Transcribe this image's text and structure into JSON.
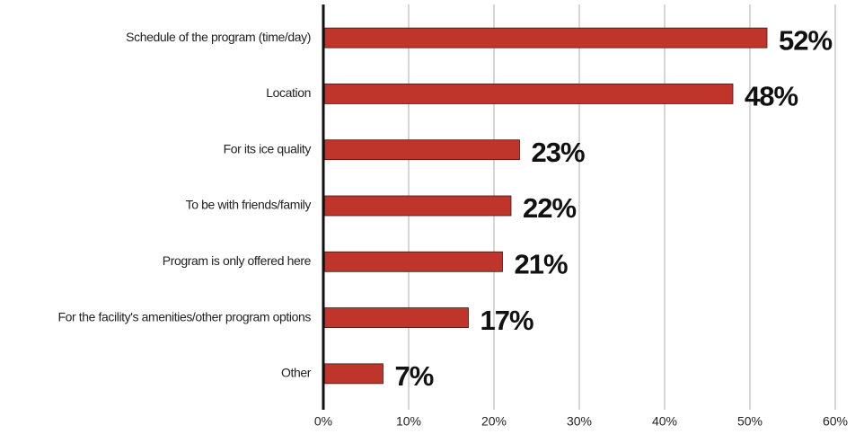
{
  "chart_data": {
    "type": "bar",
    "orientation": "horizontal",
    "categories": [
      "Schedule of the program (time/day)",
      "Location",
      "For its ice quality",
      "To be with friends/family",
      "Program is only offered here",
      "For the facility's amenities/other program options",
      "Other"
    ],
    "values": [
      52,
      48,
      23,
      22,
      21,
      17,
      7
    ],
    "value_labels": [
      "52%",
      "48%",
      "23%",
      "22%",
      "21%",
      "17%",
      "7%"
    ],
    "color": "#c0352b",
    "xlim": [
      0,
      60
    ],
    "xticks": [
      {
        "value": 0,
        "label": "0%"
      },
      {
        "value": 10,
        "label": "10%"
      },
      {
        "value": 20,
        "label": "20%"
      },
      {
        "value": 30,
        "label": "30%"
      },
      {
        "value": 40,
        "label": "40%"
      },
      {
        "value": 50,
        "label": "50%"
      },
      {
        "value": 60,
        "label": "60%"
      }
    ],
    "grid": true
  }
}
